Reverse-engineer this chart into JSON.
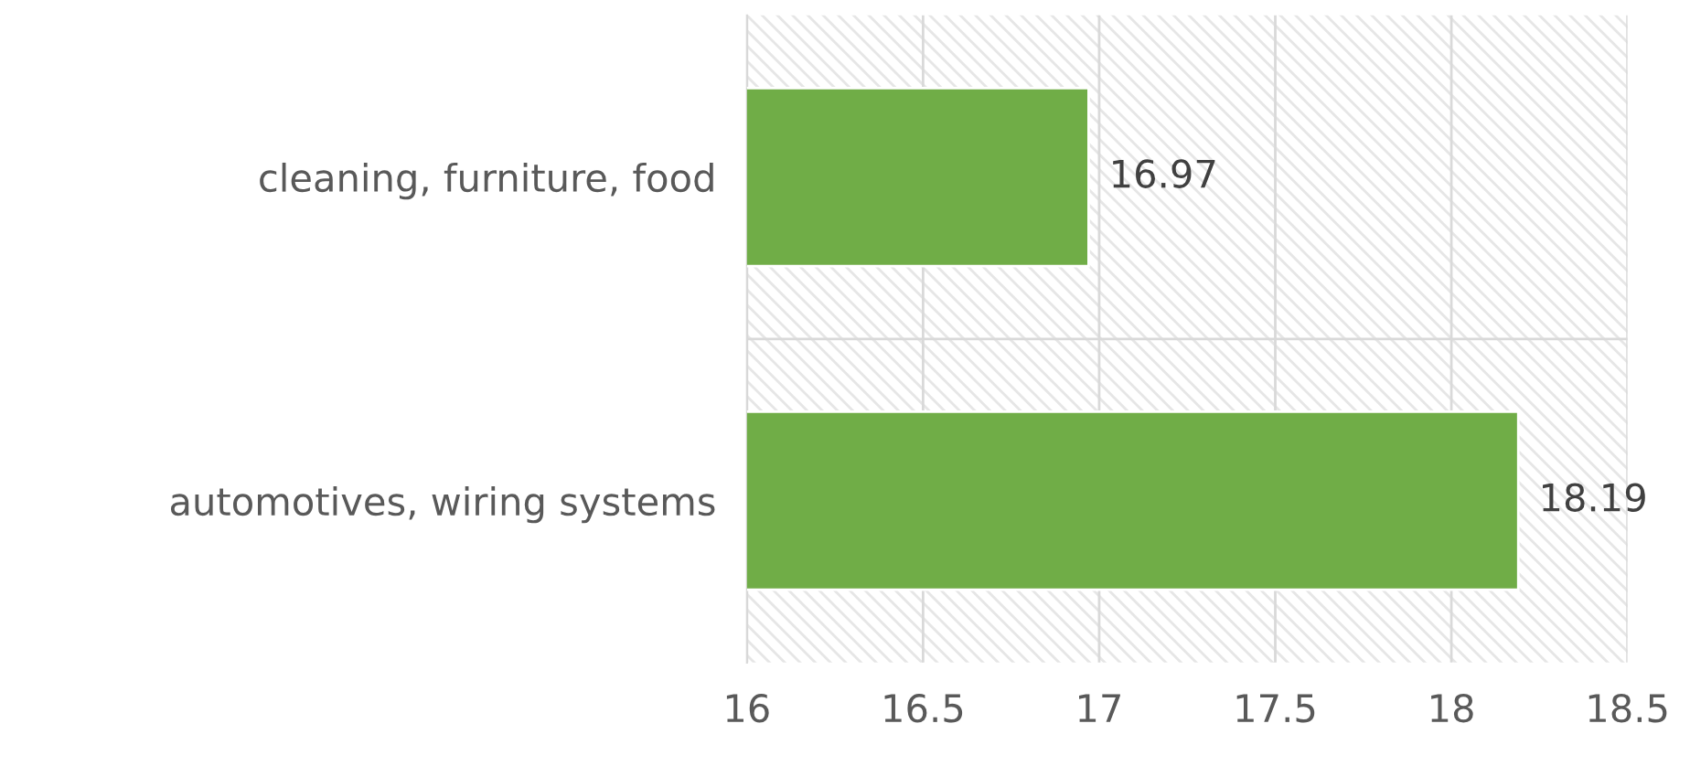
{
  "chart_data": {
    "type": "bar",
    "orientation": "horizontal",
    "categories": [
      "cleaning, furniture, food",
      "automotives, wiring systems"
    ],
    "values": [
      16.97,
      18.19
    ],
    "color": "#70ad47",
    "xlim": [
      16,
      18.5
    ],
    "xticks": [
      16,
      16.5,
      17,
      17.5,
      18,
      18.5
    ],
    "grid": true,
    "data_labels": true
  }
}
